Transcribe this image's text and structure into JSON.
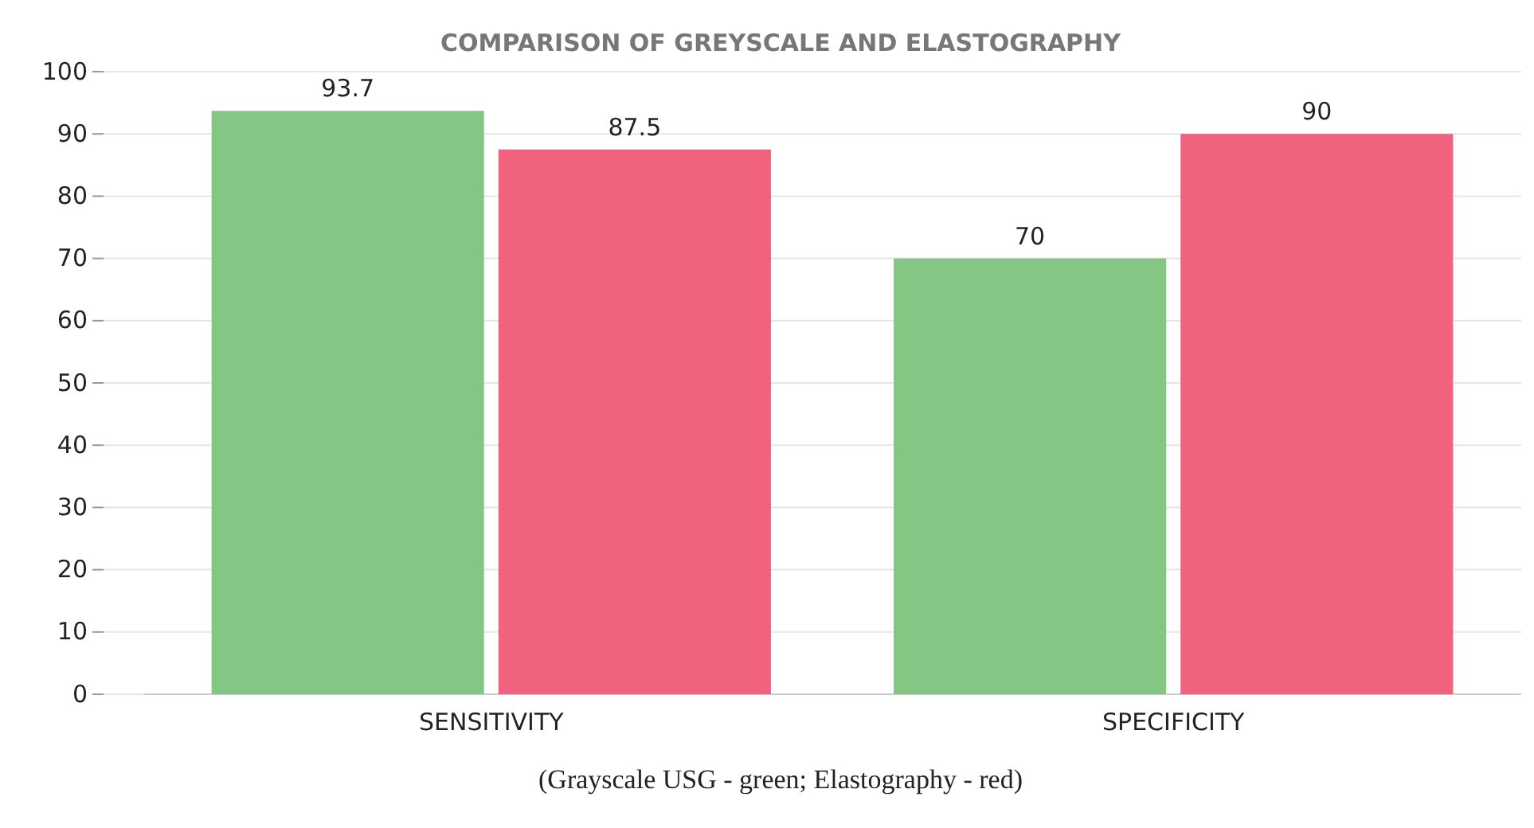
{
  "chart_data": {
    "type": "bar",
    "title": "COMPARISON OF GREYSCALE AND ELASTOGRAPHY",
    "categories": [
      "SENSITIVITY",
      "SPECIFICITY"
    ],
    "series": [
      {
        "color": "#84c784",
        "values": [
          93.7,
          70
        ]
      },
      {
        "color": "#f0627d",
        "values": [
          87.5,
          90
        ]
      }
    ],
    "ylim": [
      0,
      100
    ],
    "yticks": [
      0,
      10,
      20,
      30,
      40,
      50,
      60,
      70,
      80,
      90,
      100
    ],
    "grid": "y",
    "data_labels": true,
    "annotations": [
      "(Grayscale USG - green; Elastography - red)"
    ]
  }
}
